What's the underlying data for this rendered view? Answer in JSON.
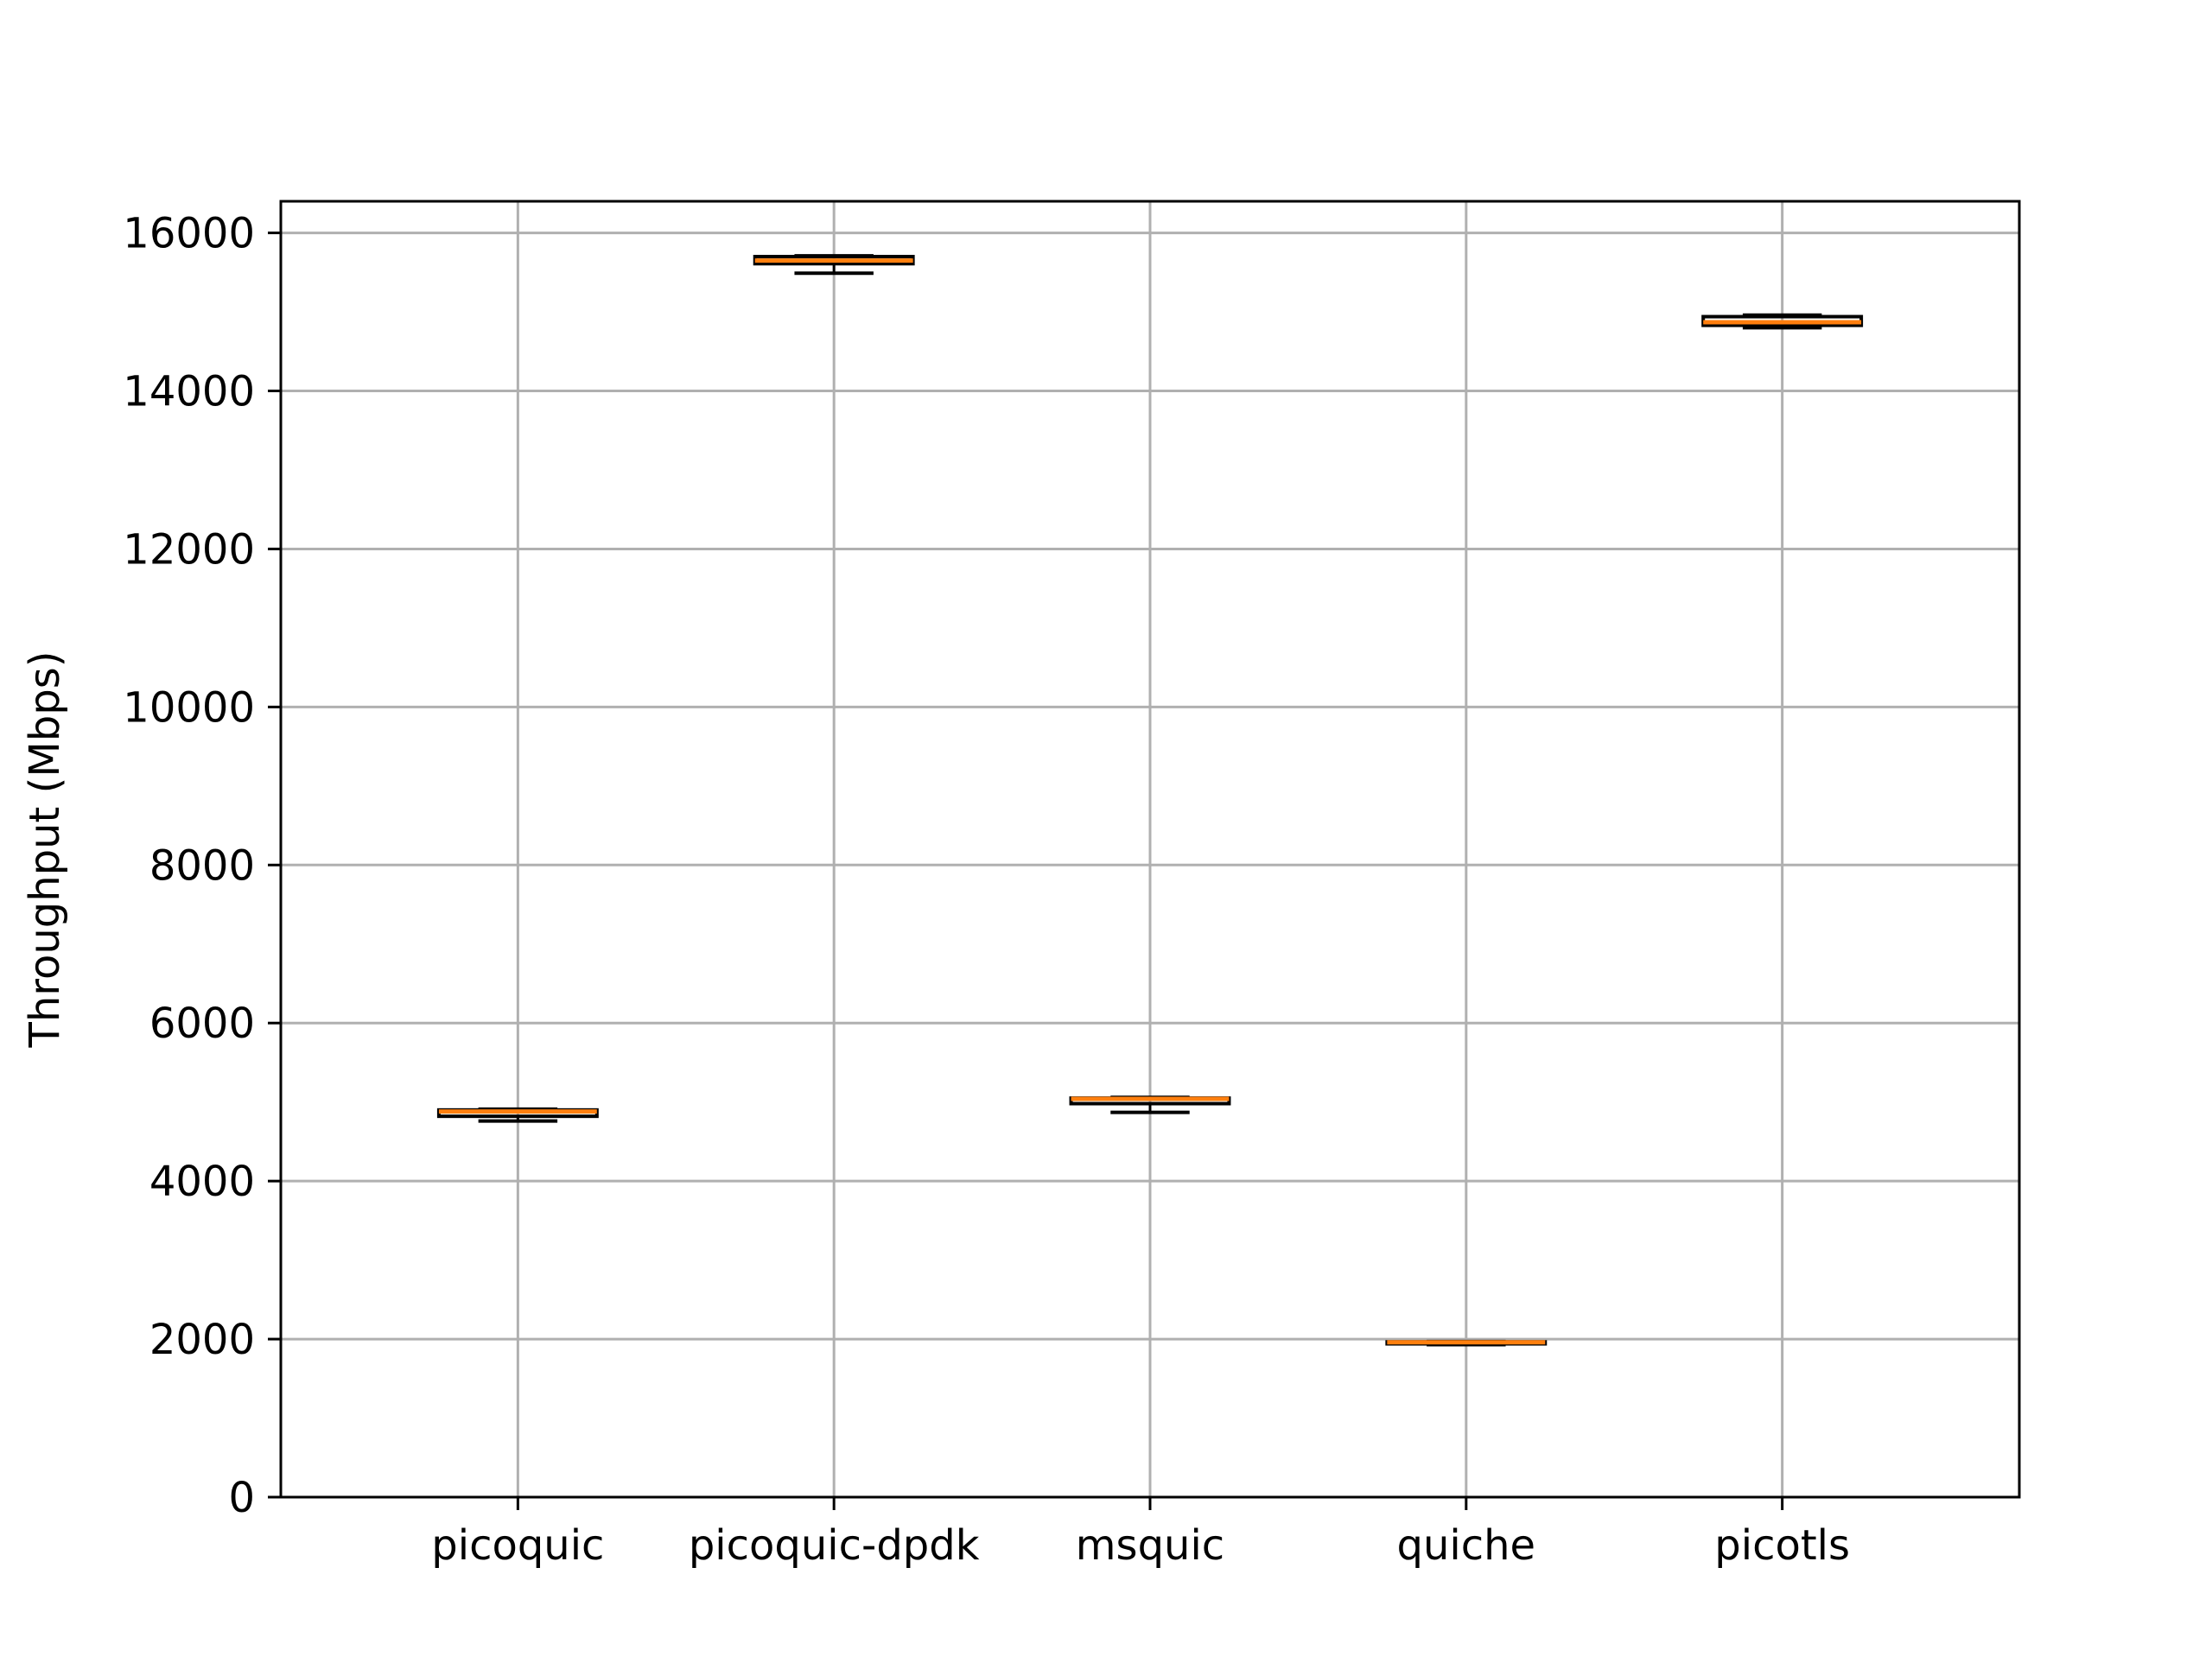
{
  "chart_data": {
    "type": "box",
    "title": "",
    "xlabel": "",
    "ylabel": "Throughput (Mbps)",
    "ylim": [
      0,
      16400
    ],
    "yticks": [
      0,
      2000,
      4000,
      6000,
      8000,
      10000,
      12000,
      14000,
      16000
    ],
    "ytick_labels": [
      "0",
      "2000",
      "4000",
      "6000",
      "8000",
      "10000",
      "12000",
      "14000",
      "16000"
    ],
    "categories": [
      "picoquic",
      "picoquic-dpdk",
      "msquic",
      "quiche",
      "picotls"
    ],
    "boxes": [
      {
        "whisker_low": 4760,
        "q1": 4820,
        "median": 4880,
        "q3": 4900,
        "whisker_high": 4910
      },
      {
        "whisker_low": 15490,
        "q1": 15610,
        "median": 15650,
        "q3": 15700,
        "whisker_high": 15710
      },
      {
        "whisker_low": 4870,
        "q1": 4980,
        "median": 5040,
        "q3": 5050,
        "whisker_high": 5060
      },
      {
        "whisker_low": 1930,
        "q1": 1940,
        "median": 1960,
        "q3": 1965,
        "whisker_high": 1970
      },
      {
        "whisker_low": 14800,
        "q1": 14830,
        "median": 14870,
        "q3": 14940,
        "whisker_high": 14960
      }
    ],
    "grid": true,
    "legend": "none",
    "colors": {
      "median": "#ff7f0e",
      "box": "#000000",
      "grid": "#b0b0b0",
      "axes": "#000000"
    }
  }
}
